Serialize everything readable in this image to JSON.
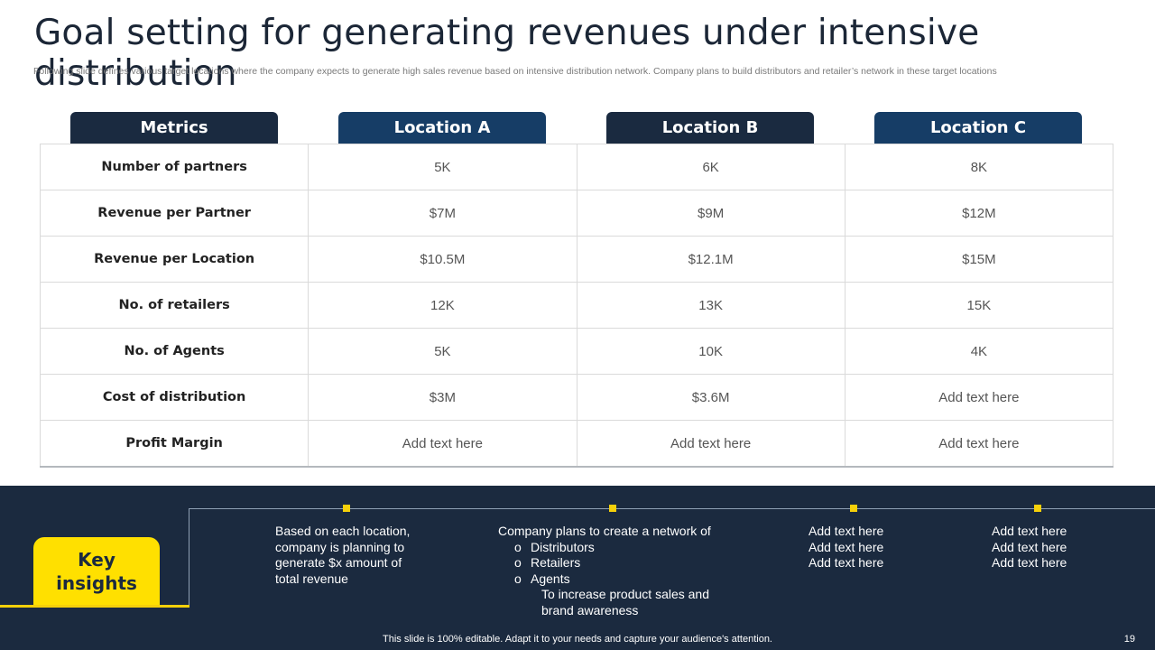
{
  "title": "Goal setting for generating revenues under intensive distribution",
  "subtitle": "Following slide defines various target locations where the company expects to  generate high sales revenue based on intensive distribution network. Company plans to build distributors and retailer’s network in these target locations",
  "colors": {
    "dark_navy": "#1a2a40",
    "blue": "#163d66",
    "band": "#1b2a3f",
    "yellow": "#ffe000"
  },
  "table": {
    "headers": [
      "Metrics",
      "Location A",
      "Location B",
      "Location C"
    ],
    "rows": [
      [
        "Number of partners",
        "5K",
        "6K",
        "8K"
      ],
      [
        "Revenue per Partner",
        "$7M",
        "$9M",
        "$12M"
      ],
      [
        "Revenue per Location",
        "$10.5M",
        "$12.1M",
        "$15M"
      ],
      [
        "No. of retailers",
        "12K",
        "13K",
        "15K"
      ],
      [
        "No. of Agents",
        "5K",
        "10K",
        "4K"
      ],
      [
        "Cost of distribution",
        "$3M",
        "$3.6M",
        "Add text here"
      ],
      [
        "Profit Margin",
        "Add text here",
        "Add text here",
        "Add text here"
      ]
    ]
  },
  "insights": {
    "label": "Key\ninsights",
    "col1": [
      "Based on each location,",
      "company is planning to",
      "generate $x amount of",
      "total revenue"
    ],
    "col2": {
      "intro": "Company plans to create a network of",
      "bullet_marker": "o",
      "bullets": [
        "Distributors",
        "Retailers",
        "Agents"
      ],
      "tail": [
        "To increase product sales and",
        "brand awareness"
      ]
    },
    "col3": [
      "Add text here",
      "Add text here",
      "Add text here"
    ],
    "col4": [
      "Add text here",
      "Add text here",
      "Add text here"
    ]
  },
  "footer": "This slide is 100% editable. Adapt it to your needs and capture your audience's attention.",
  "page_number": "19"
}
